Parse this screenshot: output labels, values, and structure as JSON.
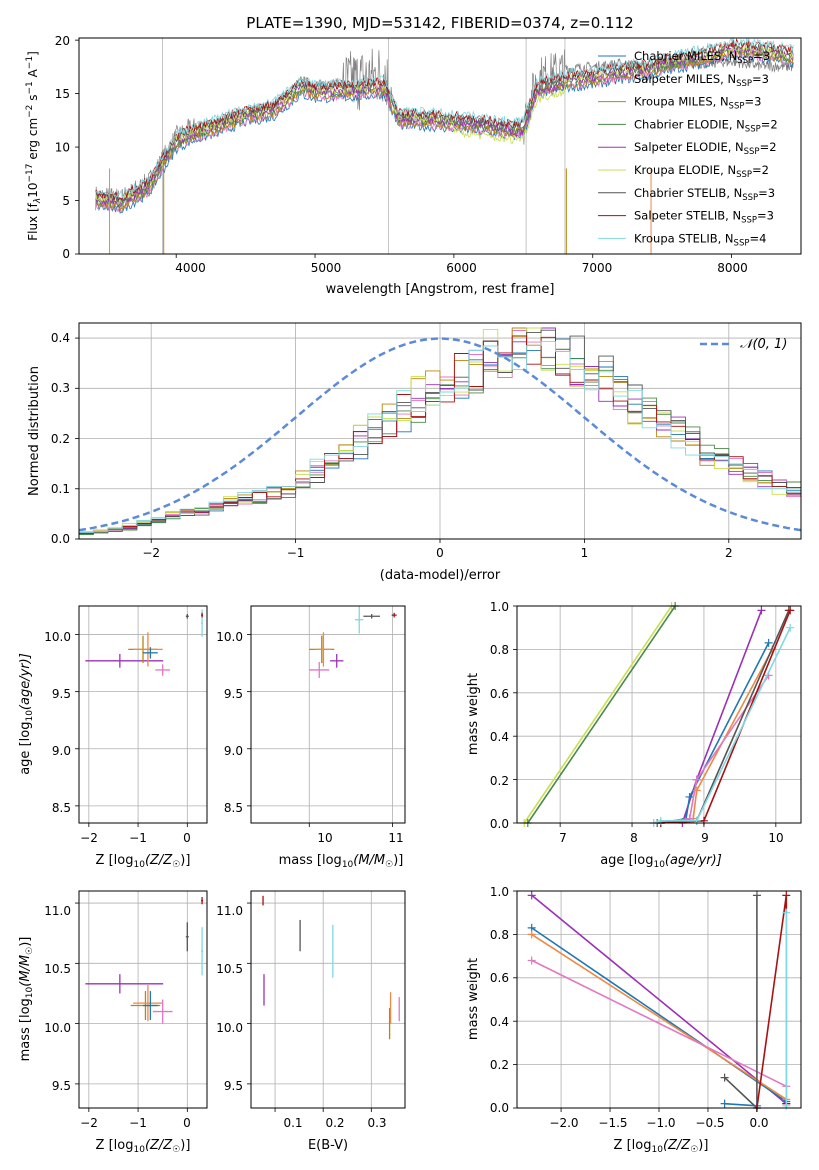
{
  "colors": {
    "chabrier_miles": "#1f77b4",
    "salpeter_miles": "#e377c2",
    "kroupa_miles": "#b8860b",
    "chabrier_elodie": "#4a8a4a",
    "salpeter_elodie": "#9b30b8",
    "kroupa_elodie": "#c8e050",
    "chabrier_stelib": "#555555",
    "salpeter_stelib": "#aa1111",
    "kroupa_stelib": "#80d8e0",
    "orange": "#ee8844",
    "normal_curve": "#5b8bd8",
    "grid": "#b0b0b0"
  },
  "chart_data": [
    {
      "id": "spectrum",
      "type": "line",
      "title": "PLATE=1390, MJD=53142, FIBERID=0374, z=0.112",
      "xlabel": "wavelength [Angstrom, rest frame]",
      "ylabel_parts": [
        "Flux [f",
        "λ",
        "10",
        "−17",
        " erg cm",
        "−2",
        " s",
        "−1",
        " A",
        "−1",
        "]"
      ],
      "xlim": [
        3300,
        8500
      ],
      "ylim": [
        0,
        20.2
      ],
      "xticks": [
        4000,
        5000,
        6000,
        7000,
        8000
      ],
      "yticks": [
        0,
        5,
        10,
        15,
        20
      ],
      "grid": false,
      "legend_position": "upper-right",
      "legend": [
        {
          "name": "Chabrier MILES, N",
          "sub": "SSP",
          "suffix": "=3",
          "color": "#1f77b4"
        },
        {
          "name": "Salpeter MILES, N",
          "sub": "SSP",
          "suffix": "=3",
          "color": "#e377c2"
        },
        {
          "name": "Kroupa MILES, N",
          "sub": "SSP",
          "suffix": "=3",
          "color": "#b8860b"
        },
        {
          "name": "Chabrier ELODIE, N",
          "sub": "SSP",
          "suffix": "=2",
          "color": "#4a8a4a"
        },
        {
          "name": "Salpeter ELODIE, N",
          "sub": "SSP",
          "suffix": "=2",
          "color": "#9b30b8"
        },
        {
          "name": "Kroupa ELODIE, N",
          "sub": "SSP",
          "suffix": "=2",
          "color": "#c8e050"
        },
        {
          "name": "Chabrier STELIB, N",
          "sub": "SSP",
          "suffix": "=3",
          "color": "#555555"
        },
        {
          "name": "Salpeter STELIB, N",
          "sub": "SSP",
          "suffix": "=3",
          "color": "#aa1111"
        },
        {
          "name": "Kroupa STELIB, N",
          "sub": "SSP",
          "suffix": "=4",
          "color": "#80d8e0"
        }
      ],
      "data_curve": {
        "x": [
          3420,
          3600,
          3800,
          4000,
          4100,
          4300,
          4500,
          4700,
          4900,
          5000,
          5200,
          5400,
          5500,
          5600,
          5800,
          6000,
          6200,
          6400,
          6500,
          6600,
          6800,
          7000,
          7200,
          7400,
          7600,
          7800,
          8000,
          8200,
          8450
        ],
        "y": [
          5.3,
          5.0,
          6.5,
          10.8,
          11.5,
          12.2,
          13.3,
          13.9,
          16.2,
          15.8,
          16.0,
          16.5,
          17.0,
          12.8,
          12.8,
          12.5,
          12.2,
          11.8,
          12.0,
          16.5,
          17.3,
          17.5,
          17.8,
          17.5,
          17.8,
          17.8,
          18.0,
          17.6,
          17.5
        ]
      },
      "model_curve": {
        "x": [
          3420,
          3600,
          3800,
          4000,
          4100,
          4300,
          4500,
          4700,
          4900,
          5000,
          5200,
          5400,
          5500,
          5600,
          5800,
          6000,
          6200,
          6400,
          6500,
          6600,
          6800,
          7000,
          7200,
          7400,
          7600,
          7800,
          8000,
          8200,
          8450
        ],
        "y": [
          5.2,
          4.8,
          6.3,
          10.5,
          11.2,
          12.0,
          13.0,
          13.5,
          15.6,
          15.2,
          15.3,
          15.5,
          15.6,
          12.7,
          12.6,
          12.4,
          12.1,
          11.7,
          11.9,
          15.5,
          16.2,
          16.5,
          17.0,
          17.3,
          18.0,
          18.5,
          19.2,
          19.0,
          18.5
        ]
      }
    },
    {
      "id": "residuals",
      "type": "line",
      "xlabel": "(data-model)/error",
      "ylabel": "Normed distribution",
      "xlim": [
        -2.5,
        2.5
      ],
      "ylim": [
        0,
        0.43
      ],
      "xticks": [
        -2,
        -1,
        0,
        1,
        2
      ],
      "yticks": [
        0.0,
        0.1,
        0.2,
        0.3,
        0.4
      ],
      "grid": true,
      "legend_position": "upper-right",
      "normal_legend": "𝒩(0, 1)",
      "normal": {
        "mu": 0,
        "sigma": 1
      },
      "hist_envelope": {
        "x": [
          -2.5,
          -2.2,
          -1.9,
          -1.6,
          -1.3,
          -1.0,
          -0.8,
          -0.6,
          -0.4,
          -0.2,
          0.0,
          0.2,
          0.4,
          0.6,
          0.8,
          1.0,
          1.2,
          1.4,
          1.6,
          1.8,
          2.0,
          2.2,
          2.5
        ],
        "y": [
          0.01,
          0.02,
          0.04,
          0.06,
          0.08,
          0.1,
          0.14,
          0.18,
          0.22,
          0.26,
          0.3,
          0.33,
          0.36,
          0.38,
          0.37,
          0.34,
          0.3,
          0.26,
          0.22,
          0.18,
          0.15,
          0.12,
          0.09
        ]
      }
    },
    {
      "id": "age_vs_Z",
      "type": "scatter",
      "xlabel": "Z [log10(Z/Z☉)]",
      "ylabel": "age [log10(age/yr)]",
      "xlim": [
        -2.2,
        0.4
      ],
      "ylim": [
        8.35,
        10.25
      ],
      "xticks": [
        -2,
        -1,
        0
      ],
      "yticks": [
        8.5,
        9.0,
        9.5,
        10.0
      ],
      "grid": true,
      "points": [
        {
          "x": -1.37,
          "y": 9.77,
          "xerr": [
            0.7,
            0.88
          ],
          "yerr": 0.06,
          "color": "#9b30b8"
        },
        {
          "x": -0.9,
          "y": 9.87,
          "xerr": [
            0.3,
            0.3
          ],
          "yerr": 0.12,
          "color": "#b8860b"
        },
        {
          "x": -0.8,
          "y": 9.87,
          "xerr": [
            0.3,
            0.3
          ],
          "yerr": 0.15,
          "color": "#ee8844"
        },
        {
          "x": -0.75,
          "y": 9.84,
          "xerr": [
            0.15,
            0.15
          ],
          "yerr": 0.05,
          "color": "#1f77b4"
        },
        {
          "x": -0.5,
          "y": 9.69,
          "xerr": [
            0.15,
            0.15
          ],
          "yerr": 0.05,
          "color": "#e377c2"
        },
        {
          "x": 0.0,
          "y": 10.16,
          "xerr": [
            0.03,
            0.03
          ],
          "yerr": 0.02,
          "color": "#555555"
        },
        {
          "x": 0.3,
          "y": 10.1,
          "xerr": [
            0.02,
            0.02
          ],
          "yerr": 0.12,
          "color": "#80d8e0"
        },
        {
          "x": 0.3,
          "y": 10.17,
          "xerr": [
            0.02,
            0.02
          ],
          "yerr": 0.02,
          "color": "#aa1111"
        }
      ]
    },
    {
      "id": "age_vs_mass",
      "type": "scatter",
      "xlabel": "mass [log10(M/M☉)]",
      "ylabel": "",
      "xlim": [
        9.3,
        11.15
      ],
      "ylim": [
        8.35,
        10.25
      ],
      "xticks": [
        10,
        11
      ],
      "yticks": [
        8.5,
        9.0,
        9.5,
        10.0
      ],
      "grid": true,
      "points": [
        {
          "x": 10.15,
          "y": 9.87,
          "xerr": [
            0.15,
            0.15
          ],
          "yerr": 0.12,
          "color": "#b8860b"
        },
        {
          "x": 10.17,
          "y": 9.87,
          "xerr": [
            0.1,
            0.1
          ],
          "yerr": 0.15,
          "color": "#ee8844"
        },
        {
          "x": 10.33,
          "y": 9.77,
          "xerr": [
            0.08,
            0.08
          ],
          "yerr": 0.06,
          "color": "#9b30b8"
        },
        {
          "x": 10.12,
          "y": 9.69,
          "xerr": [
            0.12,
            0.12
          ],
          "yerr": 0.07,
          "color": "#e377c2"
        },
        {
          "x": 10.6,
          "y": 10.13,
          "xerr": [
            0.05,
            0.05
          ],
          "yerr": 0.12,
          "color": "#80d8e0"
        },
        {
          "x": 10.75,
          "y": 10.16,
          "xerr": [
            0.1,
            0.1
          ],
          "yerr": 0.02,
          "color": "#555555"
        },
        {
          "x": 11.02,
          "y": 10.17,
          "xerr": [
            0.03,
            0.03
          ],
          "yerr": 0.02,
          "color": "#aa1111"
        }
      ]
    },
    {
      "id": "massweight_vs_age",
      "type": "line",
      "xlabel": "age [log10(age/yr)]",
      "ylabel": "mass weight",
      "xlim": [
        6.4,
        10.35
      ],
      "ylim": [
        0,
        1.0
      ],
      "xticks": [
        7,
        8,
        9,
        10
      ],
      "yticks": [
        0.0,
        0.2,
        0.4,
        0.6,
        0.8,
        1.0
      ],
      "grid": true,
      "series": [
        {
          "x": [
            6.5,
            8.55
          ],
          "y": [
            0.0,
            1.0
          ],
          "color": "#c8e050"
        },
        {
          "x": [
            6.55,
            8.6
          ],
          "y": [
            0.0,
            1.0
          ],
          "color": "#4a8a4a"
        },
        {
          "x": [
            8.7,
            8.9,
            9.8
          ],
          "y": [
            0.0,
            0.2,
            0.98
          ],
          "color": "#9b30b8"
        },
        {
          "x": [
            8.4,
            8.75,
            8.8,
            9.9
          ],
          "y": [
            0.0,
            0.02,
            0.12,
            0.83
          ],
          "color": "#1f77b4"
        },
        {
          "x": [
            8.4,
            8.85,
            8.9,
            9.95
          ],
          "y": [
            0.0,
            0.02,
            0.15,
            0.8
          ],
          "color": "#ee8844"
        },
        {
          "x": [
            8.3,
            8.8,
            8.9,
            9.9
          ],
          "y": [
            0.0,
            0.02,
            0.2,
            0.68
          ],
          "color": "#e377c2"
        },
        {
          "x": [
            8.35,
            8.9,
            10.18
          ],
          "y": [
            0.0,
            0.01,
            0.98
          ],
          "color": "#555555"
        },
        {
          "x": [
            8.4,
            9.0,
            10.2
          ],
          "y": [
            0.0,
            0.01,
            0.98
          ],
          "color": "#aa1111"
        },
        {
          "x": [
            8.3,
            8.4,
            8.9,
            10.2
          ],
          "y": [
            0.0,
            0.01,
            0.01,
            0.9
          ],
          "color": "#80d8e0"
        }
      ]
    },
    {
      "id": "mass_vs_Z",
      "type": "scatter",
      "xlabel": "Z [log10(Z/Z☉)]",
      "ylabel": "mass [log10(M/M☉)]",
      "xlim": [
        -2.2,
        0.4
      ],
      "ylim": [
        9.3,
        11.1
      ],
      "xticks": [
        -2,
        -1,
        0
      ],
      "yticks": [
        9.5,
        10.0,
        10.5,
        11.0
      ],
      "grid": true,
      "points": [
        {
          "x": -1.37,
          "y": 10.33,
          "xerr": [
            0.7,
            0.88
          ],
          "yerr": 0.08,
          "color": "#9b30b8"
        },
        {
          "x": -0.85,
          "y": 10.15,
          "xerr": [
            0.3,
            0.3
          ],
          "yerr": 0.12,
          "color": "#b8860b"
        },
        {
          "x": -0.8,
          "y": 10.17,
          "xerr": [
            0.3,
            0.3
          ],
          "yerr": 0.15,
          "color": "#ee8844"
        },
        {
          "x": -0.75,
          "y": 10.15,
          "xerr": [
            0.15,
            0.15
          ],
          "yerr": 0.12,
          "color": "#1f77b4"
        },
        {
          "x": -0.5,
          "y": 10.1,
          "xerr": [
            0.2,
            0.2
          ],
          "yerr": 0.1,
          "color": "#e377c2"
        },
        {
          "x": 0.0,
          "y": 10.72,
          "xerr": [
            0.03,
            0.03
          ],
          "yerr": 0.12,
          "color": "#555555"
        },
        {
          "x": 0.3,
          "y": 10.6,
          "xerr": [
            0.02,
            0.02
          ],
          "yerr": 0.2,
          "color": "#80d8e0"
        },
        {
          "x": 0.3,
          "y": 11.02,
          "xerr": [
            0.02,
            0.02
          ],
          "yerr": 0.03,
          "color": "#aa1111"
        }
      ]
    },
    {
      "id": "mass_vs_ebv",
      "type": "scatter",
      "xlabel": "E(B-V)",
      "ylabel": "",
      "xlim": [
        0.05,
        0.37
      ],
      "ylim": [
        9.3,
        11.1
      ],
      "xticks": [
        0.1,
        0.2,
        0.3
      ],
      "yticks": [
        9.5,
        10.0,
        10.5,
        11.0
      ],
      "grid": true,
      "points": [
        {
          "x": 0.075,
          "y": 11.02,
          "yerr": 0.04,
          "color": "#aa1111"
        },
        {
          "x": 0.077,
          "y": 10.28,
          "yerr": 0.13,
          "color": "#9b30b8"
        },
        {
          "x": 0.152,
          "y": 10.73,
          "yerr": 0.13,
          "color": "#555555"
        },
        {
          "x": 0.22,
          "y": 10.6,
          "yerr": 0.22,
          "color": "#80d8e0"
        },
        {
          "x": 0.338,
          "y": 10.0,
          "yerr": 0.13,
          "color": "#b8860b"
        },
        {
          "x": 0.34,
          "y": 10.13,
          "yerr": 0.13,
          "color": "#ee8844"
        },
        {
          "x": 0.358,
          "y": 10.12,
          "yerr": 0.1,
          "color": "#e377c2"
        }
      ]
    },
    {
      "id": "massweight_vs_Z",
      "type": "line",
      "xlabel": "Z [log10(Z/Z☉)]",
      "ylabel": "mass weight",
      "xlim": [
        -2.45,
        0.45
      ],
      "ylim": [
        0,
        1.0
      ],
      "xticks": [
        -2.0,
        -1.5,
        -1.0,
        -0.5,
        0.0
      ],
      "yticks": [
        0.0,
        0.2,
        0.4,
        0.6,
        0.8,
        1.0
      ],
      "grid": true,
      "series": [
        {
          "x": [
            -2.3,
            0.3
          ],
          "y": [
            0.98,
            0.02
          ],
          "color": "#9b30b8"
        },
        {
          "x": [
            -2.3,
            0.3
          ],
          "y": [
            0.83,
            0.03
          ],
          "color": "#1f77b4"
        },
        {
          "x": [
            -2.3,
            0.3
          ],
          "y": [
            0.8,
            0.04
          ],
          "color": "#ee8844"
        },
        {
          "x": [
            -2.3,
            0.3
          ],
          "y": [
            0.68,
            0.1
          ],
          "color": "#e377c2"
        },
        {
          "x": [
            -0.33,
            0.0,
            0.0
          ],
          "y": [
            0.14,
            0.0,
            0.98
          ],
          "color": "#555555"
        },
        {
          "x": [
            -0.33,
            0.0
          ],
          "y": [
            0.02,
            0.01
          ],
          "color": "#1f77b4"
        },
        {
          "x": [
            0.0,
            0.3,
            0.3
          ],
          "y": [
            0.0,
            0.98,
            0.02
          ],
          "color": "#aa1111"
        },
        {
          "x": [
            0.3,
            0.3
          ],
          "y": [
            0.01,
            0.9
          ],
          "color": "#80d8e0"
        }
      ]
    }
  ],
  "tick_labels": {
    "spectrum_x": [
      "4000",
      "5000",
      "6000",
      "7000",
      "8000"
    ],
    "spectrum_y": [
      "0",
      "5",
      "10",
      "15",
      "20"
    ],
    "resid_x": [
      "−2",
      "−1",
      "0",
      "1",
      "2"
    ],
    "resid_y": [
      "0.0",
      "0.1",
      "0.2",
      "0.3",
      "0.4"
    ],
    "ageZ_x": [
      "−2",
      "−1",
      "0"
    ],
    "age_y": [
      "8.5",
      "9.0",
      "9.5",
      "10.0"
    ],
    "mass_x": [
      "10",
      "11"
    ],
    "mwage_x": [
      "7",
      "8",
      "9",
      "10"
    ],
    "mw_y": [
      "0.0",
      "0.2",
      "0.4",
      "0.6",
      "0.8",
      "1.0"
    ],
    "mass_y": [
      "9.5",
      "10.0",
      "10.5",
      "11.0"
    ],
    "ebv_x": [
      "0.1",
      "0.2",
      "0.3"
    ],
    "mwZ_x": [
      "−2.0",
      "−1.5",
      "−1.0",
      "−0.5",
      "0.0"
    ]
  },
  "labels": {
    "title": "PLATE=1390, MJD=53142, FIBERID=0374, z=0.112",
    "spectrum_xlabel": "wavelength [Angstrom, rest frame]",
    "resid_xlabel": "(data-model)/error",
    "resid_ylabel": "Normed distribution",
    "normal_legend": "𝒩(0, 1)",
    "Z_label_pre": "Z [log",
    "ten": "10",
    "Z_label_mid": "(Z/Z",
    "sun": "☉",
    "close": ")]",
    "mass_label_pre": "mass [log",
    "mass_label_mid": "(M/M",
    "age_label_pre": "age  [log",
    "age_label_mid": "(age/yr)]",
    "ebv_label": "E(B-V)",
    "mw_label": "mass weight"
  }
}
